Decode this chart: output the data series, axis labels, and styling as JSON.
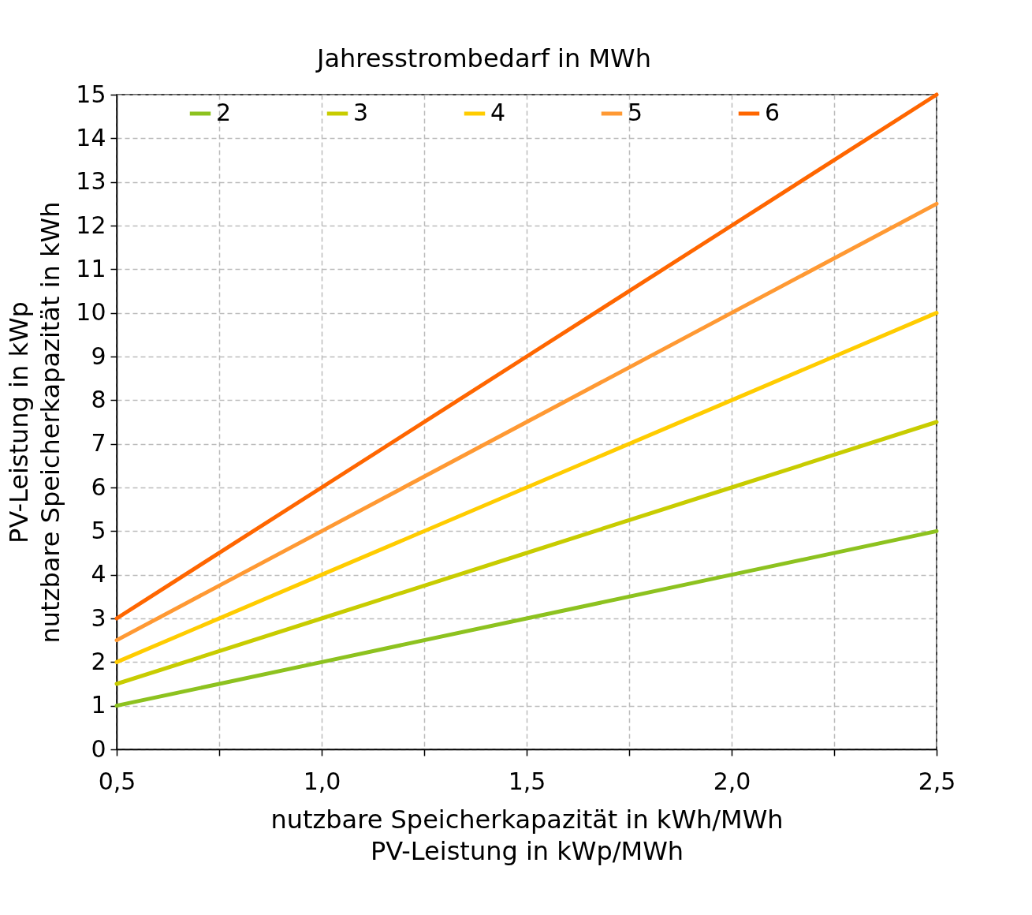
{
  "chart_data": {
    "type": "line",
    "legend_title": "Jahresstrombedarf in MWh",
    "xlabel": "nutzbare Speicherkapazität in kWh/MWh\nPV-Leistung in  kWp/MWh",
    "ylabel": "PV-Leistung in kWp\nnutzbare Speicherkapazität in kWh",
    "x": [
      0.5,
      1.0,
      1.5,
      2.0,
      2.5
    ],
    "series": [
      {
        "name": "2",
        "color": "#8dc21f",
        "values": [
          1,
          2,
          3,
          4,
          5
        ]
      },
      {
        "name": "3",
        "color": "#c8cc00",
        "values": [
          1.5,
          3,
          4.5,
          6,
          7.5
        ]
      },
      {
        "name": "4",
        "color": "#ffcc00",
        "values": [
          2,
          4,
          6,
          8,
          10
        ]
      },
      {
        "name": "5",
        "color": "#ff9933",
        "values": [
          2.5,
          5,
          7.5,
          10,
          12.5
        ]
      },
      {
        "name": "6",
        "color": "#ff6600",
        "values": [
          3,
          6,
          9,
          12,
          15
        ]
      }
    ],
    "xlim": [
      0.5,
      2.5
    ],
    "xticks": [
      {
        "value": 0.5,
        "label": "0,5"
      },
      {
        "value": 0.75,
        "label": null
      },
      {
        "value": 1.0,
        "label": "1,0"
      },
      {
        "value": 1.25,
        "label": null
      },
      {
        "value": 1.5,
        "label": "1,5"
      },
      {
        "value": 1.75,
        "label": null
      },
      {
        "value": 2.0,
        "label": "2,0"
      },
      {
        "value": 2.25,
        "label": null
      },
      {
        "value": 2.5,
        "label": "2,5"
      }
    ],
    "ylim": [
      0,
      15
    ],
    "yticks": [
      0,
      1,
      2,
      3,
      4,
      5,
      6,
      7,
      8,
      9,
      10,
      11,
      12,
      13,
      14,
      15
    ],
    "grid": true,
    "legend": "top",
    "marker": "none",
    "line_style": "solid"
  }
}
